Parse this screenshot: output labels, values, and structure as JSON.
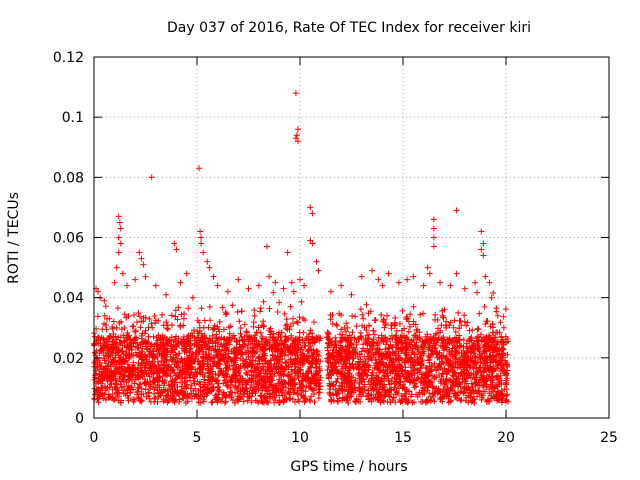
{
  "chart_data": {
    "type": "scatter",
    "title": "Day 037 of 2016, Rate Of TEC Index for receiver kiri",
    "xlabel": "GPS time / hours",
    "ylabel": "ROTI / TECUs",
    "xlim": [
      0,
      25
    ],
    "ylim": [
      0,
      0.12
    ],
    "xticks": [
      0,
      5,
      10,
      15,
      20,
      25
    ],
    "yticks": [
      0,
      0.02,
      0.04,
      0.06,
      0.08,
      0.1,
      0.12
    ],
    "grid": true,
    "marker": "+",
    "series": [
      {
        "name": "ROTI",
        "color": "#ff0000",
        "band_note": "dense band of points between about 0.005 and 0.03 TECU from hour 0 to 20, with a gap near hour 11",
        "points": [
          [
            0.1,
            0.043
          ],
          [
            0.2,
            0.042
          ],
          [
            0.3,
            0.04
          ],
          [
            0.5,
            0.039
          ],
          [
            1.0,
            0.045
          ],
          [
            1.1,
            0.05
          ],
          [
            1.2,
            0.067
          ],
          [
            1.25,
            0.065
          ],
          [
            1.3,
            0.063
          ],
          [
            1.2,
            0.06
          ],
          [
            1.3,
            0.058
          ],
          [
            1.2,
            0.055
          ],
          [
            1.4,
            0.048
          ],
          [
            1.6,
            0.044
          ],
          [
            2.0,
            0.046
          ],
          [
            2.2,
            0.055
          ],
          [
            2.3,
            0.053
          ],
          [
            2.4,
            0.051
          ],
          [
            2.5,
            0.047
          ],
          [
            2.8,
            0.08
          ],
          [
            3.0,
            0.044
          ],
          [
            3.5,
            0.041
          ],
          [
            3.9,
            0.058
          ],
          [
            4.0,
            0.056
          ],
          [
            4.2,
            0.045
          ],
          [
            4.5,
            0.048
          ],
          [
            4.8,
            0.04
          ],
          [
            5.1,
            0.083
          ],
          [
            5.15,
            0.062
          ],
          [
            5.2,
            0.06
          ],
          [
            5.2,
            0.058
          ],
          [
            5.3,
            0.055
          ],
          [
            5.5,
            0.052
          ],
          [
            5.6,
            0.05
          ],
          [
            5.8,
            0.047
          ],
          [
            6.0,
            0.044
          ],
          [
            6.5,
            0.042
          ],
          [
            7.0,
            0.046
          ],
          [
            7.5,
            0.043
          ],
          [
            8.0,
            0.044
          ],
          [
            8.4,
            0.057
          ],
          [
            8.5,
            0.047
          ],
          [
            8.8,
            0.045
          ],
          [
            9.2,
            0.043
          ],
          [
            9.4,
            0.055
          ],
          [
            9.6,
            0.045
          ],
          [
            9.7,
            0.042
          ],
          [
            9.8,
            0.108
          ],
          [
            9.9,
            0.096
          ],
          [
            9.85,
            0.094
          ],
          [
            9.8,
            0.093
          ],
          [
            9.9,
            0.092
          ],
          [
            10.0,
            0.046
          ],
          [
            10.2,
            0.044
          ],
          [
            10.5,
            0.07
          ],
          [
            10.6,
            0.068
          ],
          [
            10.5,
            0.059
          ],
          [
            10.6,
            0.058
          ],
          [
            10.8,
            0.052
          ],
          [
            10.9,
            0.049
          ],
          [
            11.5,
            0.042
          ],
          [
            12.0,
            0.044
          ],
          [
            12.5,
            0.041
          ],
          [
            13.0,
            0.047
          ],
          [
            13.5,
            0.049
          ],
          [
            13.8,
            0.046
          ],
          [
            14.0,
            0.044
          ],
          [
            14.3,
            0.048
          ],
          [
            14.8,
            0.045
          ],
          [
            15.2,
            0.046
          ],
          [
            15.5,
            0.047
          ],
          [
            16.0,
            0.044
          ],
          [
            16.2,
            0.05
          ],
          [
            16.3,
            0.048
          ],
          [
            16.5,
            0.066
          ],
          [
            16.5,
            0.063
          ],
          [
            16.5,
            0.06
          ],
          [
            16.5,
            0.057
          ],
          [
            16.8,
            0.045
          ],
          [
            17.3,
            0.044
          ],
          [
            17.6,
            0.069
          ],
          [
            17.6,
            0.048
          ],
          [
            18.0,
            0.043
          ],
          [
            18.5,
            0.045
          ],
          [
            18.8,
            0.062
          ],
          [
            18.9,
            0.058
          ],
          [
            18.8,
            0.056
          ],
          [
            18.9,
            0.054
          ],
          [
            19.0,
            0.047
          ],
          [
            19.2,
            0.045
          ],
          [
            19.3,
            0.04
          ],
          [
            19.6,
            0.034
          ],
          [
            19.9,
            0.03
          ],
          [
            20.0,
            0.025
          ]
        ]
      }
    ]
  }
}
